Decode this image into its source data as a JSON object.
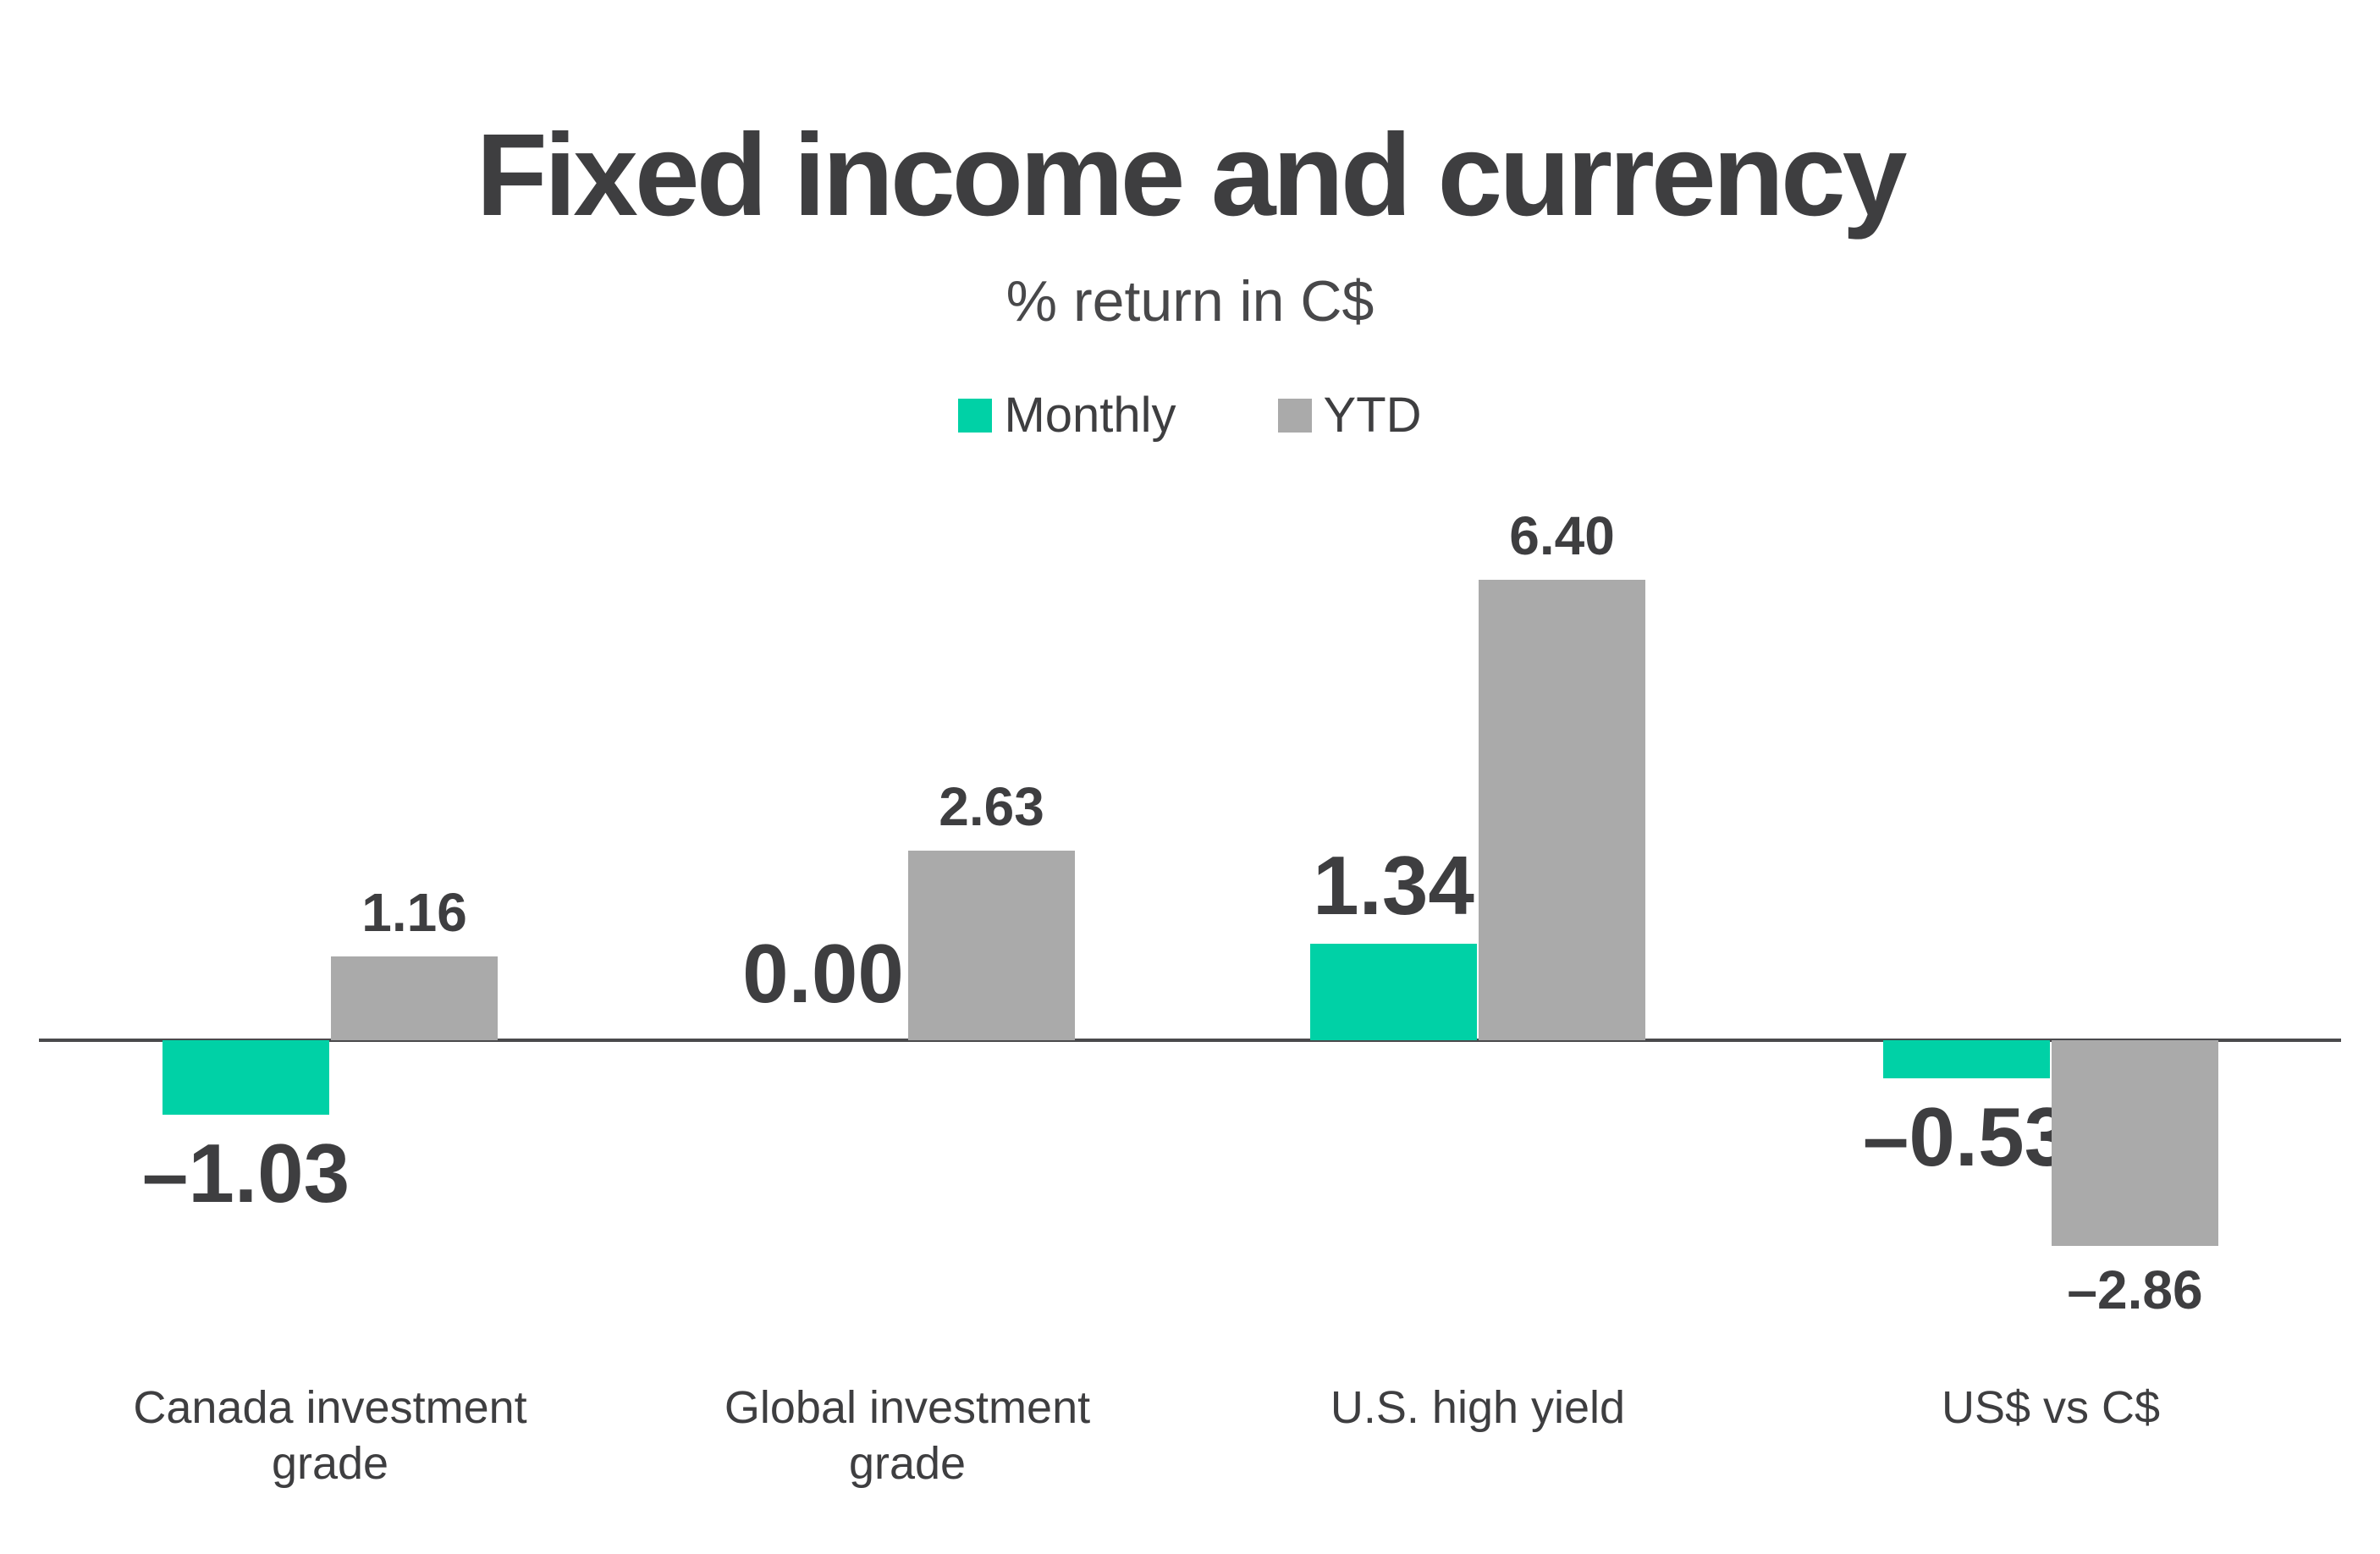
{
  "chart_data": {
    "type": "bar",
    "title": "Fixed income and currency",
    "subtitle": "% return in C$",
    "categories": [
      "Canada investment grade",
      "Global investment grade",
      "U.S. high yield",
      "US$ vs C$"
    ],
    "series": [
      {
        "name": "Monthly",
        "color": "#00D1A6",
        "values": [
          -1.03,
          0.0,
          1.34,
          -0.53
        ],
        "labels": [
          "–1.03",
          "0.00",
          "1.34",
          "–0.53"
        ]
      },
      {
        "name": "YTD",
        "color": "#AAAAAA",
        "values": [
          1.16,
          2.63,
          6.4,
          -2.86
        ],
        "labels": [
          "1.16",
          "2.63",
          "6.40",
          "–2.86"
        ]
      }
    ],
    "baseline": 0,
    "ylim": [
      -3.5,
      7.0
    ],
    "grid": false,
    "legend_position": "top-center",
    "value_labels_shown": true,
    "colors": {
      "text": "#3E3E40",
      "axis": "#4A4A4C",
      "background": "#FFFFFF"
    }
  }
}
